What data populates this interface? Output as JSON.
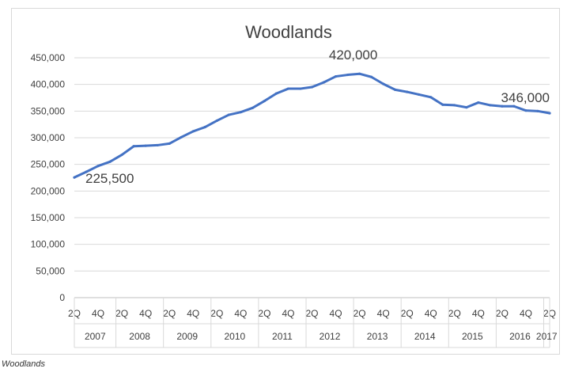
{
  "caption": "Woodlands",
  "chart_data": {
    "type": "line",
    "title": "Woodlands",
    "xlabel": "",
    "ylabel": "",
    "ylim": [
      0,
      450000
    ],
    "y_ticks": [
      "0",
      "50,000",
      "100,000",
      "150,000",
      "200,000",
      "250,000",
      "300,000",
      "350,000",
      "400,000",
      "450,000"
    ],
    "x_quarter_labels": [
      "2Q",
      "4Q",
      "2Q",
      "4Q",
      "2Q",
      "4Q",
      "2Q",
      "4Q",
      "2Q",
      "4Q",
      "2Q",
      "4Q",
      "2Q",
      "4Q",
      "2Q",
      "4Q",
      "2Q",
      "4Q",
      "2Q",
      "4Q",
      "2Q"
    ],
    "x_year_labels": [
      "2007",
      "2008",
      "2009",
      "2010",
      "2011",
      "2012",
      "2013",
      "2014",
      "2015",
      "2016",
      "2017"
    ],
    "grid": true,
    "legend": "none",
    "line_color": "#4472c4",
    "series": [
      {
        "values": [
          225500,
          236000,
          247000,
          255000,
          268000,
          284000,
          285000,
          286000,
          289000,
          301000,
          312000,
          320000,
          332000,
          343000,
          348000,
          356000,
          369000,
          383000,
          392000,
          392000,
          395000,
          404000,
          415000,
          418000,
          420000,
          414000,
          401000,
          390000,
          386000,
          381000,
          376000,
          362000,
          361000,
          357000,
          366000,
          361000,
          359000,
          359000,
          351000,
          350000,
          346000
        ]
      }
    ],
    "annotations": [
      {
        "text": "225,500",
        "index": 0
      },
      {
        "text": "420,000",
        "index": 24
      },
      {
        "text": "346,000",
        "index": 40
      }
    ]
  }
}
